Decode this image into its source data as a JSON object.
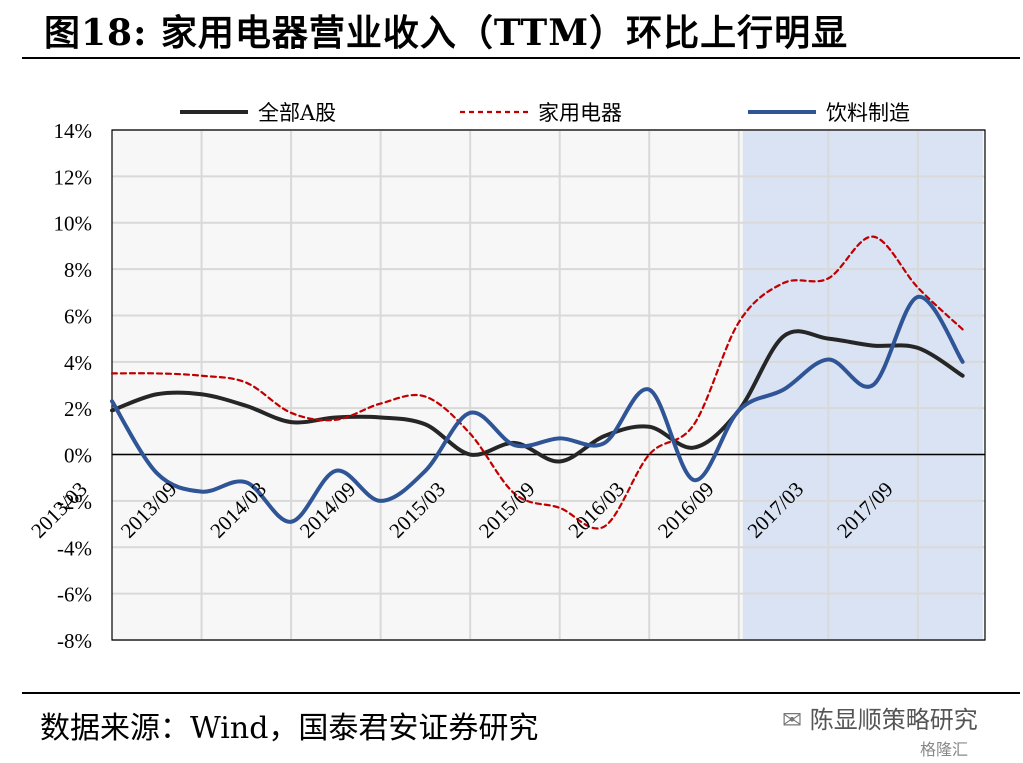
{
  "header": {
    "title": "图18: 家用电器营业收入（TTM）环比上行明显"
  },
  "footer": {
    "source": "数据来源：Wind，国泰君安证券研究",
    "watermark": "陈显顺策略研究",
    "watermark_logo": "格隆汇"
  },
  "colors": {
    "all_a": "#262626",
    "appliance": "#c00000",
    "beverage": "#2f5597",
    "shade": "#dae3f3",
    "grid": "#d9d9d9"
  },
  "chart_data": {
    "type": "line",
    "title": "",
    "xlabel": "",
    "ylabel": "",
    "y_unit": "%",
    "ylim": [
      -8,
      14
    ],
    "yticks": [
      "14%",
      "12%",
      "10%",
      "8%",
      "6%",
      "4%",
      "2%",
      "0%",
      "-2%",
      "-4%",
      "-6%",
      "-8%"
    ],
    "ytick_values": [
      14,
      12,
      10,
      8,
      6,
      4,
      2,
      0,
      -2,
      -4,
      -6,
      -8
    ],
    "grid": true,
    "legend_position": "top",
    "categories": [
      "2013/03",
      "2013/06",
      "2013/09",
      "2013/12",
      "2014/03",
      "2014/06",
      "2014/09",
      "2014/12",
      "2015/03",
      "2015/06",
      "2015/09",
      "2015/12",
      "2016/03",
      "2016/06",
      "2016/09",
      "2016/12",
      "2017/03",
      "2017/06",
      "2017/09",
      "2017/12"
    ],
    "tick_labels": [
      "2013/03",
      "2013/09",
      "2014/03",
      "2014/09",
      "2015/03",
      "2015/09",
      "2016/03",
      "2016/09",
      "2017/03",
      "2017/09"
    ],
    "shaded_range": [
      "2016/09",
      "2017/12"
    ],
    "series": [
      {
        "name": "全部A股",
        "style": "solid",
        "color_key": "all_a",
        "values": [
          1.9,
          2.6,
          2.6,
          2.1,
          1.4,
          1.6,
          1.6,
          1.3,
          0.0,
          0.5,
          -0.3,
          0.8,
          1.2,
          0.3,
          1.9,
          5.1,
          5.0,
          4.7,
          4.6,
          3.4
        ]
      },
      {
        "name": "家用电器",
        "style": "dashed",
        "color_key": "appliance",
        "values": [
          3.5,
          3.5,
          3.4,
          3.1,
          1.8,
          1.5,
          2.2,
          2.5,
          0.9,
          -1.7,
          -2.3,
          -3.1,
          0.0,
          1.3,
          5.7,
          7.4,
          7.6,
          9.4,
          7.2,
          5.4
        ]
      },
      {
        "name": "饮料制造",
        "style": "solid",
        "color_key": "beverage",
        "values": [
          2.3,
          -0.8,
          -1.6,
          -1.2,
          -2.9,
          -0.7,
          -2.0,
          -0.7,
          1.8,
          0.4,
          0.7,
          0.5,
          2.8,
          -1.1,
          1.9,
          2.8,
          4.1,
          3.0,
          6.8,
          4.0
        ]
      }
    ]
  }
}
